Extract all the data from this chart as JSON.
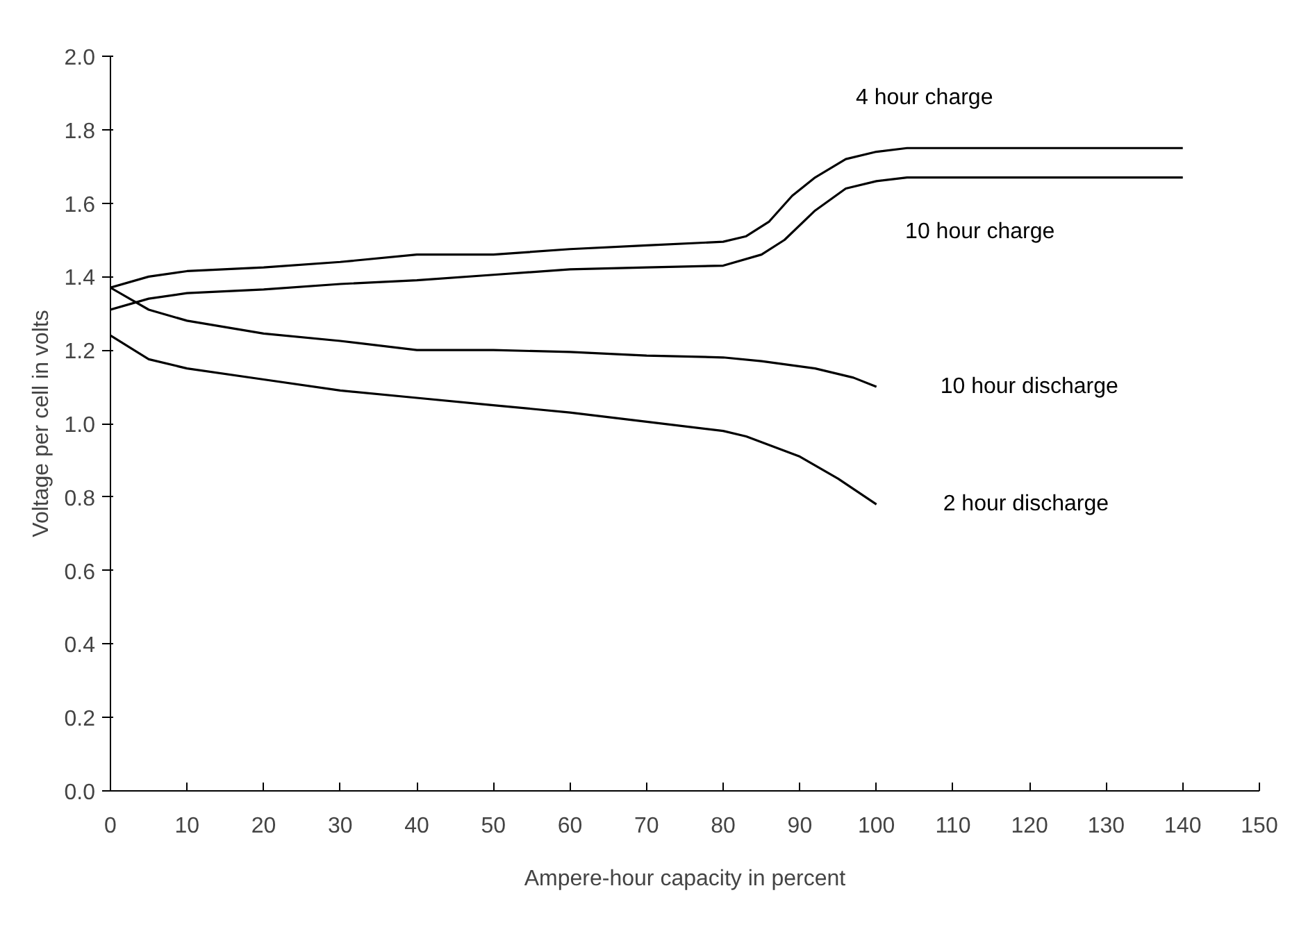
{
  "chart_data": {
    "type": "line",
    "xlabel": "Ampere-hour capacity in percent",
    "ylabel": "Voltage per cell in volts",
    "xlim": [
      0,
      150
    ],
    "xticks": [
      0,
      10,
      20,
      30,
      40,
      50,
      60,
      70,
      80,
      90,
      100,
      110,
      120,
      130,
      140,
      150
    ],
    "ylim": [
      0,
      2.0
    ],
    "yticks": [
      {
        "value": 0,
        "label": "0.0"
      },
      0.2,
      0.4,
      0.6,
      0.8,
      {
        "value": 1,
        "label": "1.0"
      },
      1.2,
      1.4,
      1.6,
      1.8,
      {
        "value": 2,
        "label": "2.0"
      }
    ],
    "grid": false,
    "marker": "none",
    "line_style": "solid",
    "series": [
      {
        "name": "4 hour charge",
        "color": "#000000",
        "x": [
          0,
          5,
          10,
          20,
          30,
          40,
          50,
          60,
          70,
          80,
          83,
          86,
          89,
          92,
          96,
          100,
          104,
          140
        ],
        "values": [
          1.37,
          1.4,
          1.415,
          1.425,
          1.44,
          1.46,
          1.46,
          1.475,
          1.485,
          1.495,
          1.51,
          1.55,
          1.62,
          1.67,
          1.72,
          1.74,
          1.75,
          1.75
        ]
      },
      {
        "name": "10 hour charge",
        "color": "#000000",
        "x": [
          0,
          5,
          10,
          20,
          30,
          40,
          50,
          60,
          70,
          80,
          85,
          88,
          92,
          96,
          100,
          104,
          140
        ],
        "values": [
          1.31,
          1.34,
          1.355,
          1.365,
          1.38,
          1.39,
          1.405,
          1.42,
          1.425,
          1.43,
          1.46,
          1.5,
          1.58,
          1.64,
          1.66,
          1.67,
          1.67
        ]
      },
      {
        "name": "10 hour discharge",
        "color": "#000000",
        "x": [
          0,
          5,
          10,
          20,
          30,
          40,
          50,
          60,
          70,
          80,
          85,
          92,
          97,
          100
        ],
        "values": [
          1.37,
          1.31,
          1.28,
          1.245,
          1.225,
          1.2,
          1.2,
          1.195,
          1.185,
          1.18,
          1.17,
          1.15,
          1.125,
          1.1
        ]
      },
      {
        "name": "2 hour discharge",
        "color": "#000000",
        "x": [
          0,
          5,
          10,
          20,
          30,
          40,
          50,
          60,
          70,
          80,
          83,
          90,
          95,
          100
        ],
        "values": [
          1.24,
          1.175,
          1.15,
          1.12,
          1.09,
          1.07,
          1.05,
          1.03,
          1.005,
          0.98,
          0.965,
          0.91,
          0.85,
          0.78
        ]
      }
    ]
  }
}
